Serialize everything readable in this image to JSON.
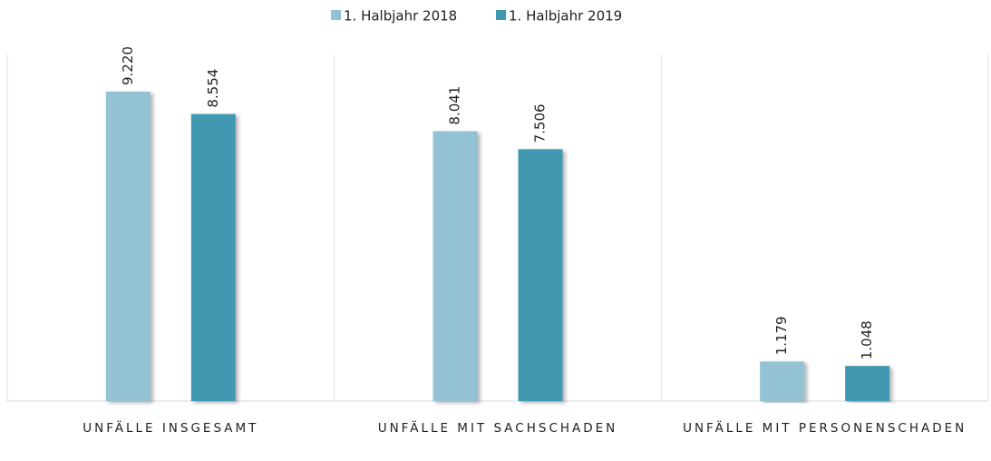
{
  "chart_data": {
    "type": "bar",
    "categories": [
      "UNFÄLLE INSGESAMT",
      "UNFÄLLE MIT SACHSCHADEN",
      "UNFÄLLE MIT PERSONENSCHADEN"
    ],
    "series": [
      {
        "name": "1. Halbjahr 2018",
        "color": "#92c2d4",
        "values": [
          9220,
          8041,
          1179
        ],
        "value_labels": [
          "9.220",
          "8.041",
          "1.179"
        ]
      },
      {
        "name": "1. Halbjahr 2019",
        "color": "#4199b0",
        "values": [
          8554,
          7506,
          1048
        ],
        "value_labels": [
          "8.554",
          "7.506",
          "1.048"
        ]
      }
    ],
    "legend": "top"
  }
}
